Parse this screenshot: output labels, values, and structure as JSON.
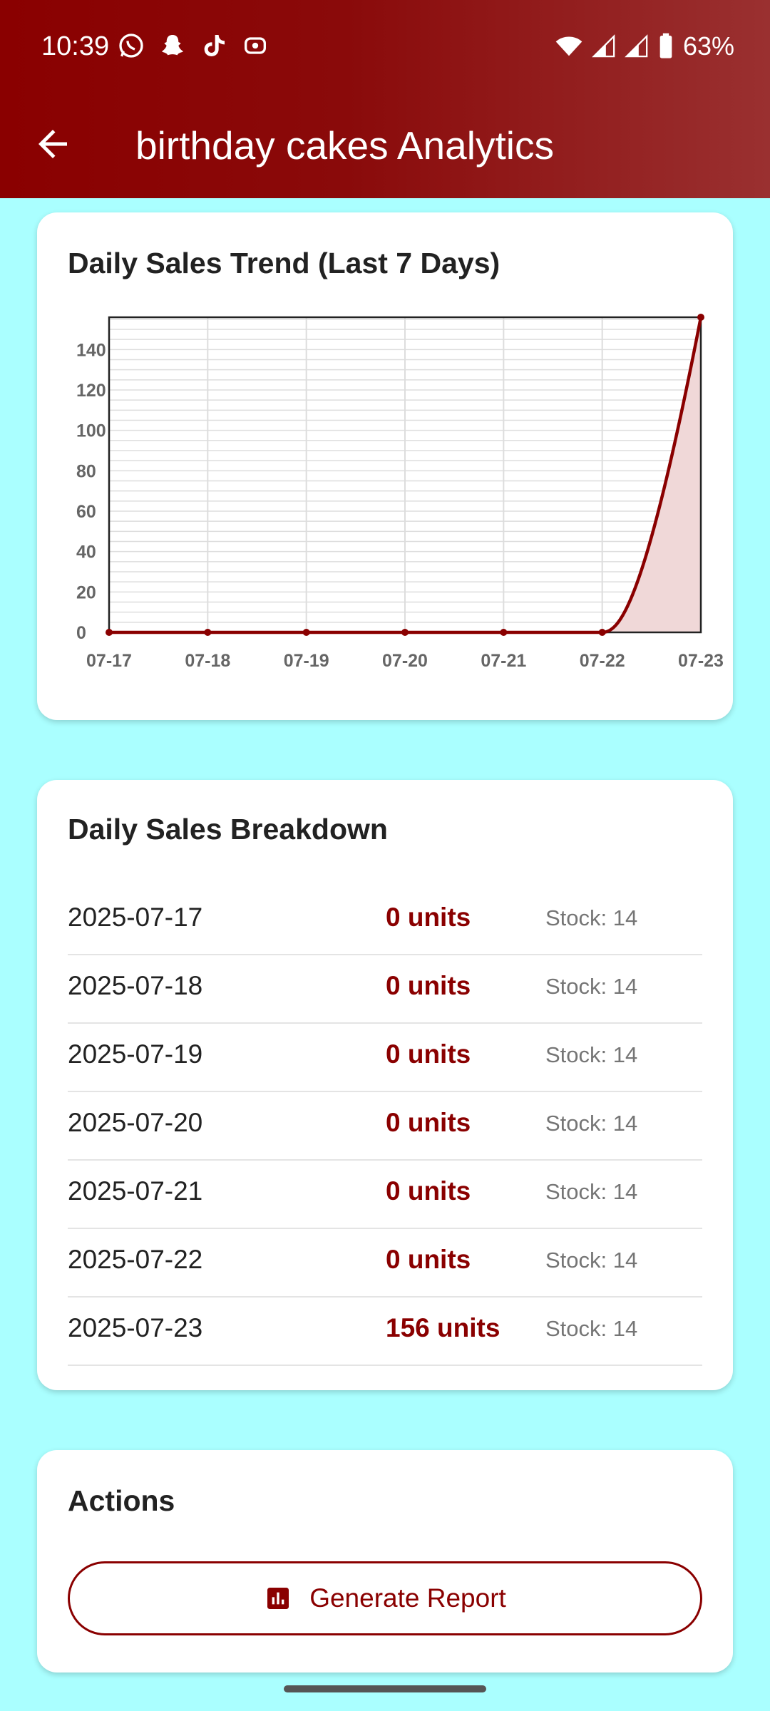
{
  "status_bar": {
    "time": "10:39",
    "battery": "63%",
    "notification_icons": [
      "whatsapp-icon",
      "snapchat-icon",
      "tiktok-icon",
      "screen-record-icon"
    ],
    "system_icons": [
      "wifi-icon",
      "signal-icon",
      "signal-icon",
      "battery-icon"
    ]
  },
  "app_bar": {
    "back_icon": "arrow-back-icon",
    "title": "birthday cakes Analytics",
    "color": "#8a0000"
  },
  "chart_card": {
    "title": "Daily Sales Trend (Last 7 Days)"
  },
  "chart_data": {
    "type": "line",
    "title": "Daily Sales Trend (Last 7 Days)",
    "x": [
      "07-17",
      "07-18",
      "07-19",
      "07-20",
      "07-21",
      "07-22",
      "07-23"
    ],
    "series": [
      {
        "values": [
          0,
          0,
          0,
          0,
          0,
          0,
          156
        ]
      }
    ],
    "ylim": [
      0,
      156
    ],
    "yticks": [
      0,
      20,
      40,
      60,
      80,
      100,
      120,
      140
    ],
    "grid": true,
    "area_fill": true,
    "line_color": "#8a0000",
    "fill_color": "#f0d8d8"
  },
  "breakdown": {
    "title": "Daily Sales Breakdown",
    "rows": [
      {
        "date": "2025-07-17",
        "units": "0 units",
        "stock": "Stock: 14"
      },
      {
        "date": "2025-07-18",
        "units": "0 units",
        "stock": "Stock: 14"
      },
      {
        "date": "2025-07-19",
        "units": "0 units",
        "stock": "Stock: 14"
      },
      {
        "date": "2025-07-20",
        "units": "0 units",
        "stock": "Stock: 14"
      },
      {
        "date": "2025-07-21",
        "units": "0 units",
        "stock": "Stock: 14"
      },
      {
        "date": "2025-07-22",
        "units": "0 units",
        "stock": "Stock: 14"
      },
      {
        "date": "2025-07-23",
        "units": "156 units",
        "stock": "Stock: 14"
      }
    ]
  },
  "actions": {
    "title": "Actions",
    "report_button": {
      "label": "Generate Report",
      "icon": "bar-chart-icon"
    }
  },
  "colors": {
    "background": "#aaffff",
    "accent": "#8a0000"
  }
}
